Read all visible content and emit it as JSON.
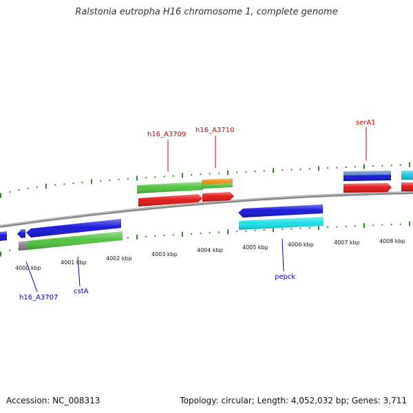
{
  "title": "Ralstonia eutropha H16 chromosome 1, complete genome",
  "accession": "Accession: NC_008313",
  "summary": "Topology: circular; Length: 4,052,032 bp; Genes: 3,711",
  "colors": {
    "backbone": "#8a8a8a",
    "tick": "#2e8b22",
    "forward_label": "#cc0000",
    "reverse_label": "#0000aa",
    "cds_red": "#e01010",
    "cds_green": "#4cc23a",
    "cds_blue": "#1010d8",
    "cds_cyan": "#14e0e8",
    "cds_orange": "#f09010",
    "cds_gray": "#808080",
    "cds_steel": "#4a7ab8"
  },
  "scale_labels": [
    "4000 kbp",
    "4001 kbp",
    "4002 kbp",
    "4003 kbp",
    "4004 kbp",
    "4005 kbp",
    "4006 kbp",
    "4007 kbp",
    "4008 kbp"
  ],
  "forward_gene_labels": [
    "h16_A3709",
    "h16_A3710",
    "serA1"
  ],
  "reverse_gene_labels": [
    "h16_A3707",
    "cstA",
    "pepck"
  ]
}
